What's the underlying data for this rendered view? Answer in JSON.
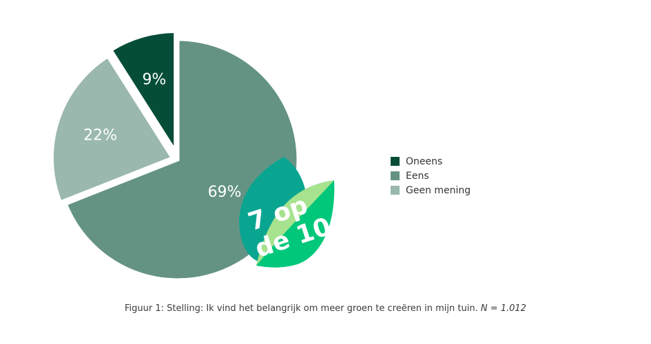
{
  "chart_data": {
    "type": "pie",
    "title": "",
    "series": [
      {
        "name": "Oneens",
        "value": 9,
        "label": "9%",
        "color": "#054d38"
      },
      {
        "name": "Eens",
        "value": 69,
        "label": "69%",
        "color": "#649384"
      },
      {
        "name": "Geen mening",
        "value": 22,
        "label": "22%",
        "color": "#9ab8ad"
      }
    ],
    "start_angle": "top",
    "direction": "clockwise-from-oneens",
    "exploded": [
      "Oneens",
      "Geen mening"
    ],
    "legend": "right"
  },
  "badge": {
    "line1": "7 op",
    "line2": "de 10",
    "colors": {
      "back_leaf": "#0aa591",
      "front_leaf": "#00c77a",
      "front_highlight": "#a7e28e"
    }
  },
  "caption": {
    "text": "Figuur 1: Stelling: Ik vind het belangrijk om meer groen te creëren in mijn tuin. ",
    "n_text": "N = 1.012"
  }
}
